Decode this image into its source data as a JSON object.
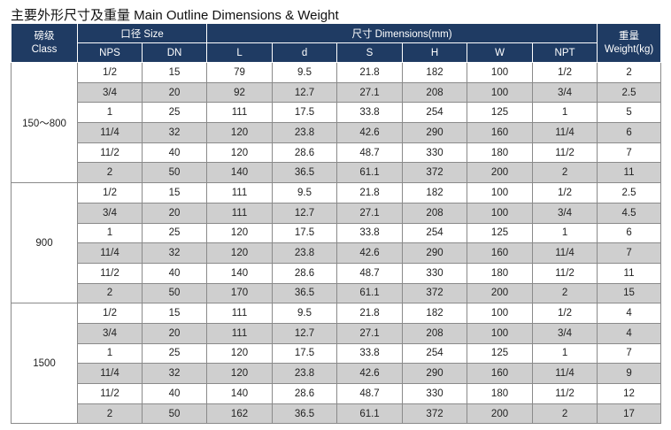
{
  "title": "主要外形尺寸及重量 Main Outline Dimensions & Weight",
  "header": {
    "class_label": "磅级",
    "class_label_en": "Class",
    "size_group": "口径 Size",
    "dims_group": "尺寸 Dimensions(mm)",
    "weight_label": "重量",
    "weight_label_en": "Weight(kg)",
    "columns": [
      "NPS",
      "DN",
      "L",
      "d",
      "S",
      "H",
      "W",
      "NPT"
    ]
  },
  "groups": [
    {
      "class": "150～800",
      "rows": [
        {
          "nps": "1/2",
          "dn": "15",
          "L": "79",
          "d": "9.5",
          "S": "21.8",
          "H": "182",
          "W": "100",
          "npt": "1/2",
          "weight": "2"
        },
        {
          "nps": "3/4",
          "dn": "20",
          "L": "92",
          "d": "12.7",
          "S": "27.1",
          "H": "208",
          "W": "100",
          "npt": "3/4",
          "weight": "2.5"
        },
        {
          "nps": "1",
          "dn": "25",
          "L": "111",
          "d": "17.5",
          "S": "33.8",
          "H": "254",
          "W": "125",
          "npt": "1",
          "weight": "5"
        },
        {
          "nps": "11/4",
          "dn": "32",
          "L": "120",
          "d": "23.8",
          "S": "42.6",
          "H": "290",
          "W": "160",
          "npt": "11/4",
          "weight": "6"
        },
        {
          "nps": "11/2",
          "dn": "40",
          "L": "120",
          "d": "28.6",
          "S": "48.7",
          "H": "330",
          "W": "180",
          "npt": "11/2",
          "weight": "7"
        },
        {
          "nps": "2",
          "dn": "50",
          "L": "140",
          "d": "36.5",
          "S": "61.1",
          "H": "372",
          "W": "200",
          "npt": "2",
          "weight": "11"
        }
      ]
    },
    {
      "class": "900",
      "rows": [
        {
          "nps": "1/2",
          "dn": "15",
          "L": "111",
          "d": "9.5",
          "S": "21.8",
          "H": "182",
          "W": "100",
          "npt": "1/2",
          "weight": "2.5"
        },
        {
          "nps": "3/4",
          "dn": "20",
          "L": "111",
          "d": "12.7",
          "S": "27.1",
          "H": "208",
          "W": "100",
          "npt": "3/4",
          "weight": "4.5"
        },
        {
          "nps": "1",
          "dn": "25",
          "L": "120",
          "d": "17.5",
          "S": "33.8",
          "H": "254",
          "W": "125",
          "npt": "1",
          "weight": "6"
        },
        {
          "nps": "11/4",
          "dn": "32",
          "L": "120",
          "d": "23.8",
          "S": "42.6",
          "H": "290",
          "W": "160",
          "npt": "11/4",
          "weight": "7"
        },
        {
          "nps": "11/2",
          "dn": "40",
          "L": "140",
          "d": "28.6",
          "S": "48.7",
          "H": "330",
          "W": "180",
          "npt": "11/2",
          "weight": "11"
        },
        {
          "nps": "2",
          "dn": "50",
          "L": "170",
          "d": "36.5",
          "S": "61.1",
          "H": "372",
          "W": "200",
          "npt": "2",
          "weight": "15"
        }
      ]
    },
    {
      "class": "1500",
      "rows": [
        {
          "nps": "1/2",
          "dn": "15",
          "L": "111",
          "d": "9.5",
          "S": "21.8",
          "H": "182",
          "W": "100",
          "npt": "1/2",
          "weight": "4"
        },
        {
          "nps": "3/4",
          "dn": "20",
          "L": "111",
          "d": "12.7",
          "S": "27.1",
          "H": "208",
          "W": "100",
          "npt": "3/4",
          "weight": "4"
        },
        {
          "nps": "1",
          "dn": "25",
          "L": "120",
          "d": "17.5",
          "S": "33.8",
          "H": "254",
          "W": "125",
          "npt": "1",
          "weight": "7"
        },
        {
          "nps": "11/4",
          "dn": "32",
          "L": "120",
          "d": "23.8",
          "S": "42.6",
          "H": "290",
          "W": "160",
          "npt": "11/4",
          "weight": "9"
        },
        {
          "nps": "11/2",
          "dn": "40",
          "L": "140",
          "d": "28.6",
          "S": "48.7",
          "H": "330",
          "W": "180",
          "npt": "11/2",
          "weight": "12"
        },
        {
          "nps": "2",
          "dn": "50",
          "L": "162",
          "d": "36.5",
          "S": "61.1",
          "H": "372",
          "W": "200",
          "npt": "2",
          "weight": "17"
        }
      ]
    }
  ]
}
